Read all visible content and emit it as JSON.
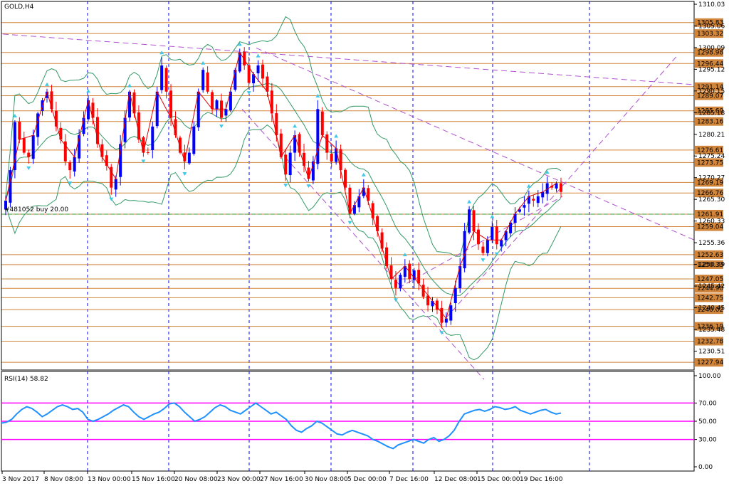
{
  "symbol_title": "GOLD,H4",
  "order_label": "#481052 buy 20.00",
  "rsi_title": "RSI(14) 58.82",
  "colors": {
    "background": "#ffffff",
    "frame": "#000000",
    "grid": "#0000ff",
    "level_line": "#d0853a",
    "level_tag_bg": "#d0853a",
    "bull_candle": "#0000ff",
    "bear_candle": "#ff0000",
    "zigzag": "#e00000",
    "bollinger": "#339966",
    "trendline": "#b050d0",
    "order_line": "#339933",
    "rsi_line": "#1e90ff",
    "rsi_levels": "#ff00ff",
    "fractal": "#40c8e8"
  },
  "chart_data": [
    {
      "type": "candlestick",
      "title": "GOLD,H4",
      "ylim": [
        1226.5,
        1310.03
      ],
      "y_tick_labels": [
        "1310.03",
        "1305.06",
        "1300.09",
        "1295.12",
        "1290.15",
        "1285.18",
        "1280.21",
        "1275.24",
        "1270.27",
        "1265.30",
        "1260.33",
        "1255.36",
        "1250.39",
        "1245.42",
        "1240.45",
        "1235.48",
        "1230.51"
      ],
      "horizontal_levels": [
        1305.83,
        1303.32,
        1298.98,
        1296.44,
        1291.14,
        1289.07,
        1285.6,
        1283.16,
        1276.61,
        1273.75,
        1269.19,
        1266.76,
        1261.91,
        1259.04,
        1252.63,
        1250.33,
        1247.05,
        1244.9,
        1242.75,
        1240.02,
        1236.19,
        1232.78,
        1227.94
      ],
      "level_tags": [
        "1305.83",
        "1303.32",
        "1298.98",
        "1296.44",
        "1291.14",
        "1289.07",
        "1285.60",
        "1283.16",
        "1276.61",
        "1273.75",
        "1269.19",
        "1266.76",
        "1261.91",
        "1259.04",
        "1252.63",
        "1250.33",
        "1247.05",
        "1244.90",
        "1242.75",
        "1240.02",
        "1236.19",
        "1232.78",
        "1227.94"
      ],
      "order_level": 1261.91,
      "x_tick_labels": [
        "3 Nov 2017",
        "8 Nov 08:00",
        "13 Nov 00:00",
        "15 Nov 16:00",
        "20 Nov 08:00",
        "23 Nov 00:00",
        "27 Nov 16:00",
        "30 Nov 08:00",
        "5 Dec 00:00",
        "7 Dec 16:00",
        "12 Dec 08:00",
        "15 Dec 00:00",
        "19 Dec 16:00"
      ],
      "close_path": [
        1265,
        1272,
        1283,
        1279,
        1276,
        1275,
        1280,
        1285,
        1288,
        1290,
        1286,
        1282,
        1279,
        1274,
        1272,
        1275,
        1280,
        1284,
        1288,
        1284,
        1278,
        1275,
        1273,
        1268,
        1270,
        1278,
        1284,
        1290,
        1285,
        1279,
        1276,
        1276,
        1282,
        1290,
        1296,
        1290,
        1284,
        1280,
        1276,
        1274,
        1276,
        1282,
        1290,
        1295,
        1290,
        1286,
        1288,
        1284,
        1286,
        1290,
        1295,
        1299,
        1296,
        1292,
        1294,
        1296,
        1293,
        1290,
        1285,
        1280,
        1275,
        1271,
        1276,
        1280,
        1276,
        1273,
        1270,
        1274,
        1286,
        1280,
        1276,
        1274,
        1277,
        1272,
        1268,
        1262,
        1264,
        1266,
        1268,
        1265,
        1261,
        1258,
        1254,
        1250,
        1247,
        1245,
        1248,
        1250,
        1247,
        1249,
        1246,
        1243,
        1241,
        1242,
        1240,
        1237,
        1238,
        1241,
        1245,
        1250,
        1258,
        1263,
        1258,
        1255,
        1253,
        1256,
        1259,
        1255,
        1256,
        1258,
        1260,
        1262,
        1263,
        1264,
        1266,
        1265,
        1266,
        1267,
        1269,
        1268,
        1269,
        1267
      ]
    },
    {
      "type": "line",
      "title": "RSI(14) 58.82",
      "ylim": [
        0,
        100
      ],
      "y_tick_labels": [
        "100.00",
        "70.00",
        "50.00",
        "30.00",
        "0.00"
      ],
      "levels": [
        70,
        50,
        30
      ],
      "values": [
        48,
        49,
        52,
        58,
        63,
        66,
        64,
        60,
        55,
        58,
        62,
        66,
        68,
        66,
        63,
        64,
        60,
        52,
        50,
        52,
        55,
        58,
        62,
        65,
        68,
        66,
        60,
        55,
        52,
        55,
        58,
        60,
        64,
        69,
        70,
        66,
        60,
        55,
        50,
        52,
        55,
        60,
        65,
        68,
        66,
        62,
        60,
        58,
        62,
        66,
        70,
        66,
        62,
        58,
        60,
        56,
        52,
        45,
        40,
        38,
        42,
        45,
        50,
        48,
        44,
        40,
        36,
        35,
        38,
        40,
        38,
        36,
        34,
        30,
        28,
        25,
        22,
        20,
        24,
        26,
        28,
        30,
        28,
        26,
        30,
        32,
        28,
        30,
        34,
        40,
        50,
        58,
        60,
        62,
        63,
        61,
        63,
        66,
        65,
        63,
        64,
        66,
        62,
        60,
        58,
        60,
        62,
        63,
        60,
        58,
        59
      ]
    }
  ]
}
